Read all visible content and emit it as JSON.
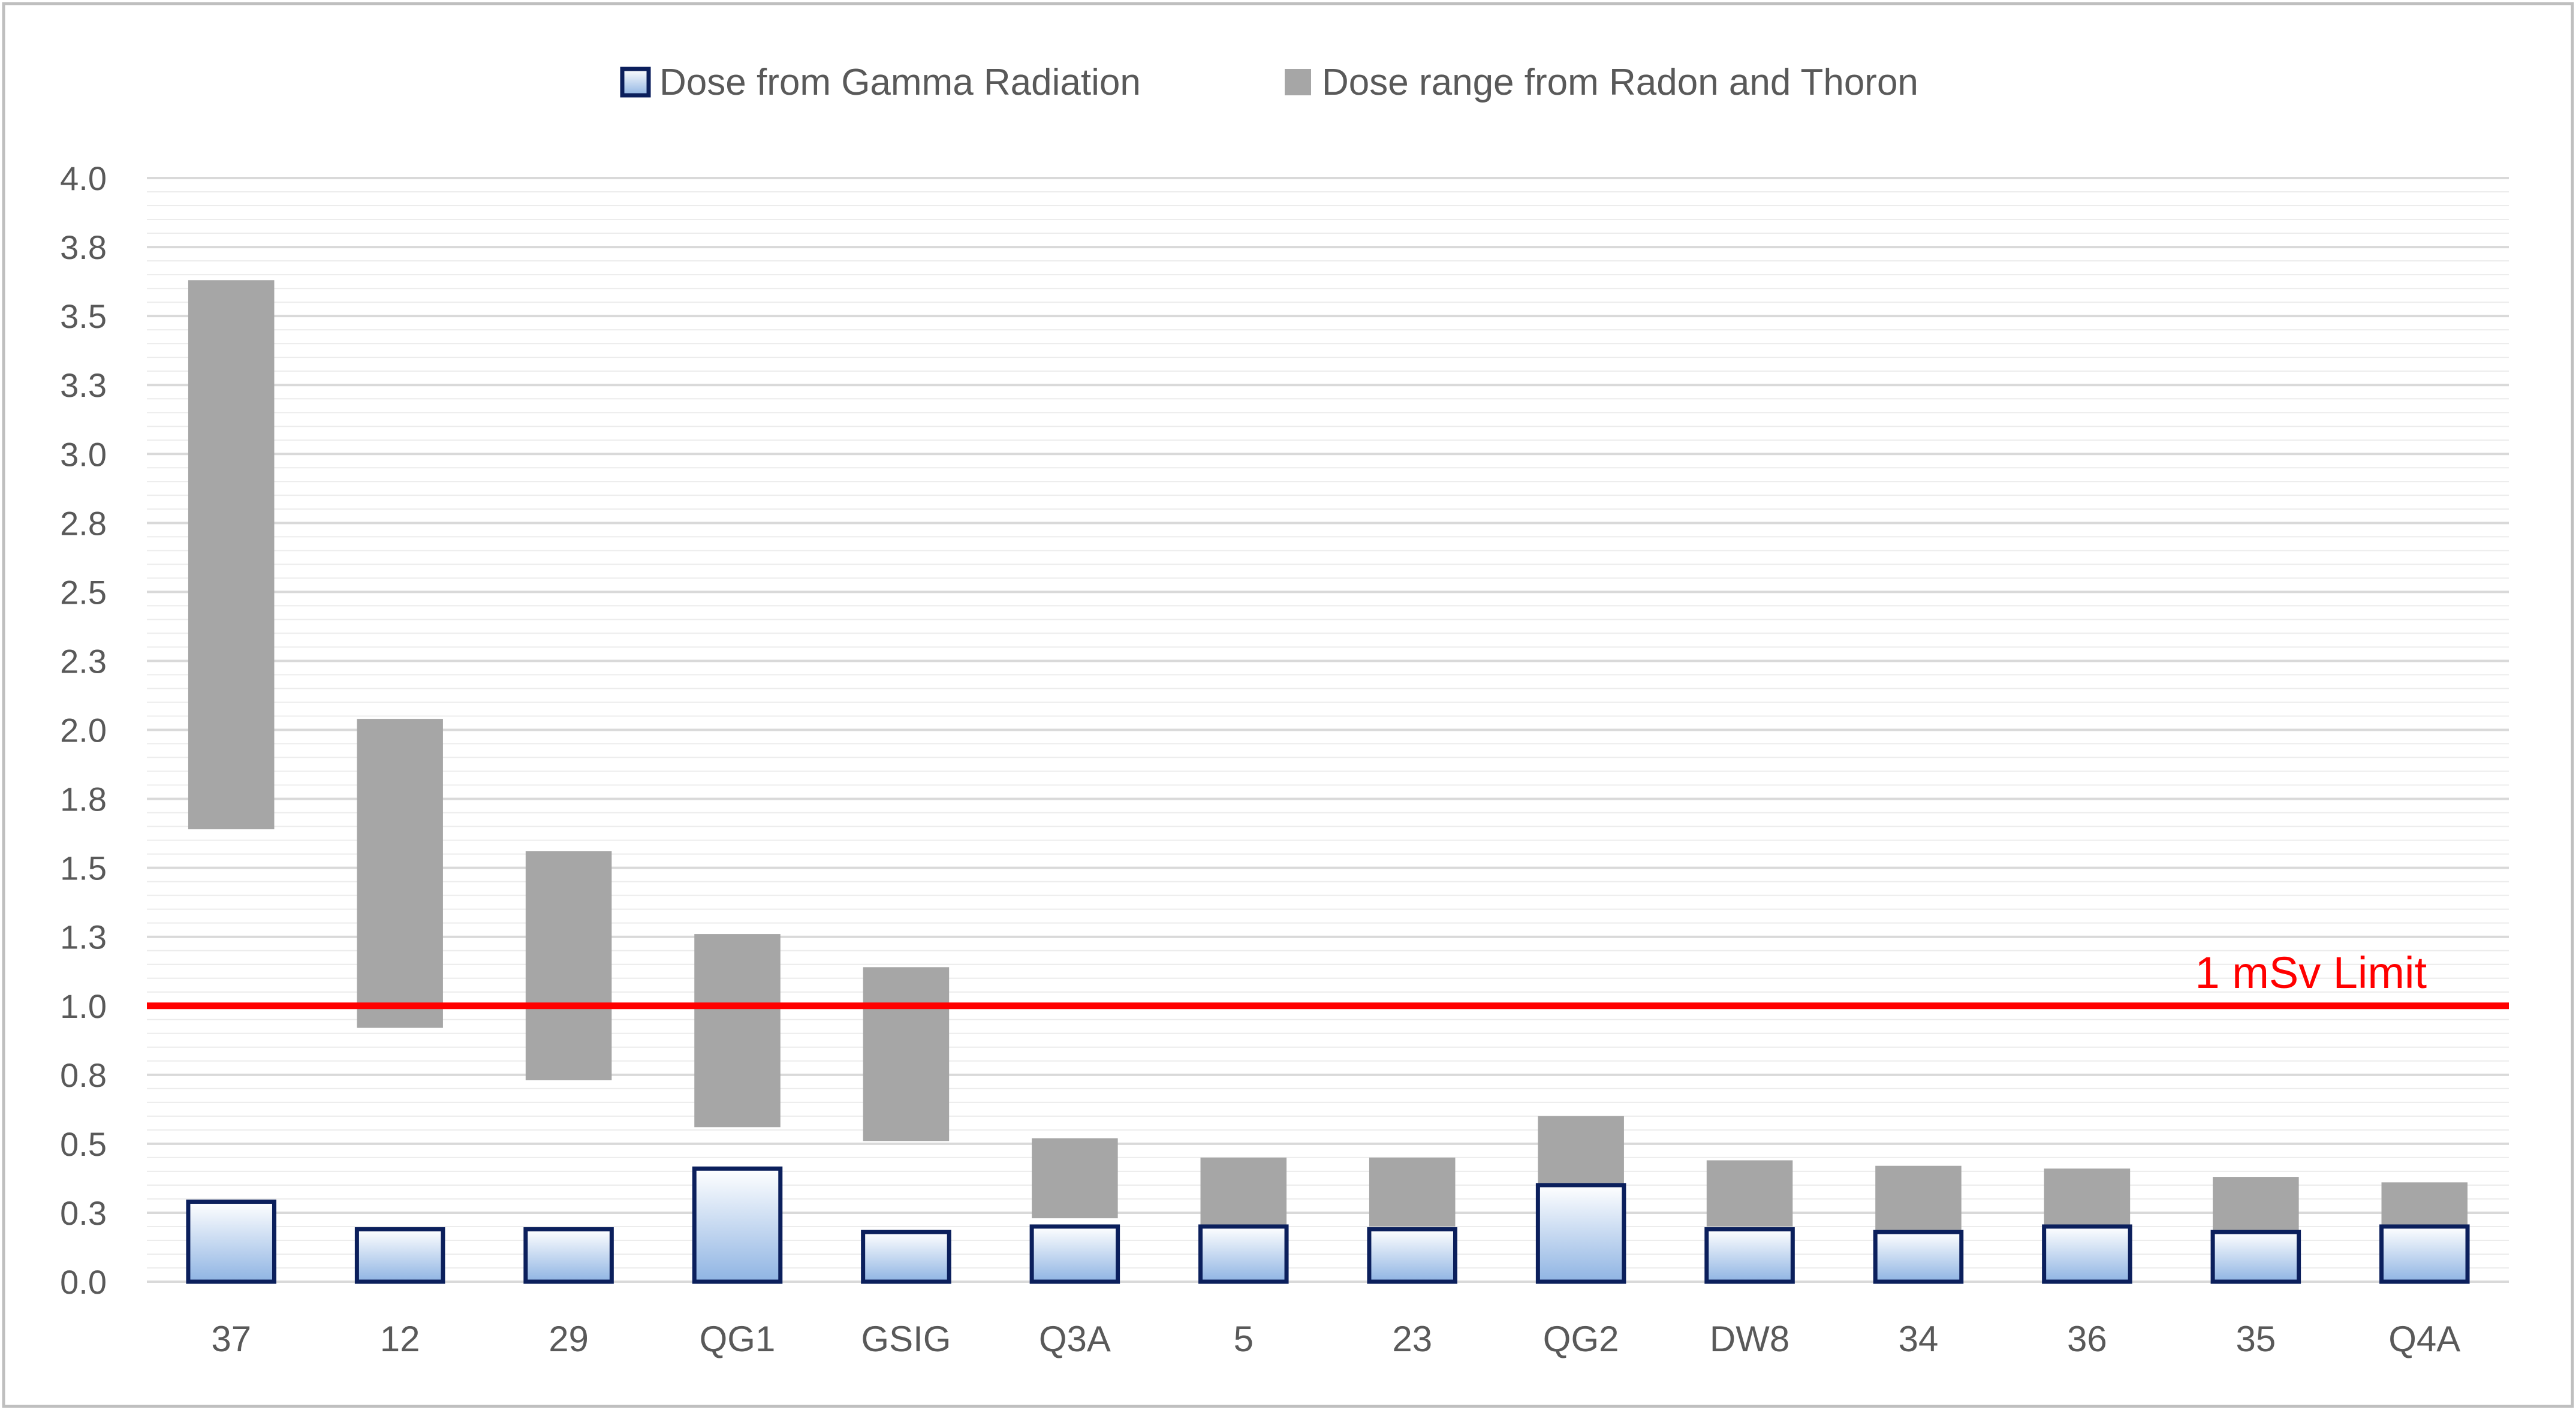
{
  "chart_data": {
    "type": "bar",
    "categories": [
      "37",
      "12",
      "29",
      "QG1",
      "GSIG",
      "Q3A",
      "5",
      "23",
      "QG2",
      "DW8",
      "34",
      "36",
      "35",
      "Q4A"
    ],
    "series": [
      {
        "name": "Dose from Gamma Radiation",
        "values": [
          0.29,
          0.19,
          0.19,
          0.41,
          0.18,
          0.2,
          0.2,
          0.19,
          0.35,
          0.19,
          0.18,
          0.2,
          0.18,
          0.2
        ]
      },
      {
        "name": "Dose range from Radon and Thoron",
        "ranges": [
          [
            1.64,
            3.63
          ],
          [
            0.92,
            2.04
          ],
          [
            0.73,
            1.56
          ],
          [
            0.56,
            1.26
          ],
          [
            0.51,
            1.14
          ],
          [
            0.23,
            0.52
          ],
          [
            0.2,
            0.45
          ],
          [
            0.2,
            0.45
          ],
          [
            0.35,
            0.6
          ],
          [
            0.2,
            0.44
          ],
          [
            0.18,
            0.42
          ],
          [
            0.2,
            0.41
          ],
          [
            0.18,
            0.38
          ],
          [
            0.2,
            0.36
          ]
        ]
      }
    ],
    "y_axis": {
      "min": 0,
      "max": 4.0,
      "major_ticks": [
        0.0,
        0.25,
        0.5,
        0.75,
        1.0,
        1.25,
        1.5,
        1.75,
        2.0,
        2.25,
        2.5,
        2.75,
        3.0,
        3.25,
        3.5,
        3.75,
        4.0
      ],
      "tick_labels": [
        "0.0",
        "0.3",
        "0.5",
        "0.8",
        "1.0",
        "1.3",
        "1.5",
        "1.8",
        "2.0",
        "2.3",
        "2.5",
        "2.8",
        "3.0",
        "3.3",
        "3.5",
        "3.8",
        "4.0"
      ],
      "minor_step": 0.05
    },
    "limit_line": {
      "value": 1.0,
      "label": "1 mSv Limit",
      "color": "#ff0000"
    },
    "legend": {
      "position": "top"
    },
    "grid": true,
    "colors": {
      "gamma_fill_top": "#ffffff",
      "gamma_fill_bottom": "#8fb4e3",
      "gamma_border": "#0b1f5c",
      "range_fill": "#a6a6a6",
      "grid_major": "#d9d9d9",
      "grid_minor": "#ececec",
      "frame": "#bfbfbf"
    }
  }
}
